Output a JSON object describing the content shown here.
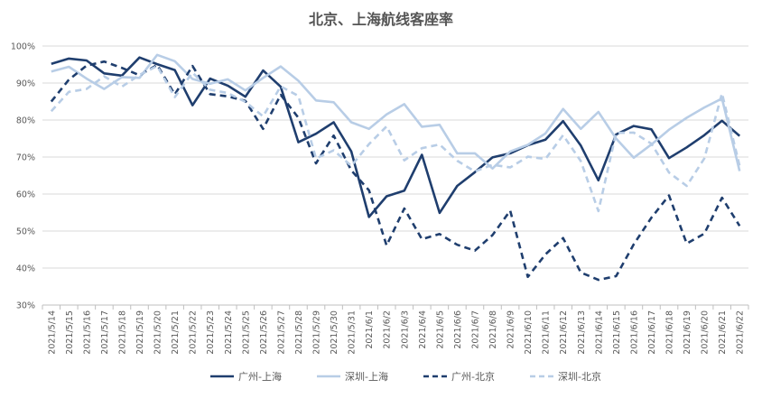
{
  "chart_data": {
    "type": "line",
    "title": "北京、上海航线客座率",
    "xlabel": "",
    "ylabel": "",
    "ylim": [
      30,
      100
    ],
    "yticks": [
      "30%",
      "40%",
      "50%",
      "60%",
      "70%",
      "80%",
      "90%",
      "100%"
    ],
    "grid": "horizontal",
    "legend_position": "bottom",
    "categories": [
      "2021/5/14",
      "2021/5/15",
      "2021/5/16",
      "2021/5/17",
      "2021/5/18",
      "2021/5/19",
      "2021/5/20",
      "2021/5/21",
      "2021/5/22",
      "2021/5/23",
      "2021/5/24",
      "2021/5/25",
      "2021/5/26",
      "2021/5/27",
      "2021/5/28",
      "2021/5/29",
      "2021/5/30",
      "2021/5/31",
      "2021/6/1",
      "2021/6/2",
      "2021/6/3",
      "2021/6/4",
      "2021/6/5",
      "2021/6/6",
      "2021/6/7",
      "2021/6/8",
      "2021/6/9",
      "2021/6/10",
      "2021/6/11",
      "2021/6/12",
      "2021/6/13",
      "2021/6/14",
      "2021/6/15",
      "2021/6/16",
      "2021/6/17",
      "2021/6/18",
      "2021/6/19",
      "2021/6/20",
      "2021/6/21",
      "2021/6/22"
    ],
    "series": [
      {
        "name": "广州-上海",
        "color": "#1f3e6e",
        "style": "solid",
        "values": [
          95.2,
          96.6,
          96.1,
          92.6,
          92.0,
          96.9,
          95.1,
          93.5,
          84.0,
          91.2,
          89.3,
          86.3,
          93.4,
          89.0,
          74.0,
          76.3,
          79.4,
          71.5,
          53.8,
          59.4,
          60.9,
          70.6,
          54.9,
          62.2,
          65.9,
          69.9,
          71.0,
          73.2,
          74.7,
          79.7,
          73.1,
          63.7,
          76.1,
          78.4,
          77.5,
          69.7,
          72.6,
          75.9,
          79.8,
          75.7
        ]
      },
      {
        "name": "深圳-上海",
        "color": "#b8cde6",
        "style": "solid",
        "values": [
          93.1,
          94.4,
          91.2,
          88.4,
          91.6,
          91.4,
          97.6,
          95.9,
          91.1,
          89.8,
          91.0,
          88.0,
          91.4,
          94.5,
          90.6,
          85.3,
          84.8,
          79.4,
          77.6,
          81.5,
          84.3,
          78.2,
          78.7,
          71.0,
          71.0,
          66.9,
          71.5,
          73.3,
          76.4,
          83.0,
          77.6,
          82.2,
          75.0,
          69.8,
          73.4,
          77.4,
          80.6,
          83.4,
          85.8,
          66.2
        ]
      },
      {
        "name": "广州-北京",
        "color": "#1f3e6e",
        "style": "dashed",
        "values": [
          85.0,
          90.9,
          94.7,
          95.8,
          94.1,
          92.1,
          94.9,
          86.9,
          94.6,
          87.0,
          86.4,
          85.2,
          77.6,
          86.8,
          80.6,
          68.3,
          75.8,
          66.4,
          61.0,
          46.1,
          56.1,
          47.8,
          49.2,
          46.3,
          44.7,
          48.9,
          55.5,
          37.6,
          43.7,
          48.1,
          38.8,
          36.8,
          37.8,
          46.4,
          53.6,
          59.6,
          46.6,
          49.3,
          59.0,
          51.4
        ]
      },
      {
        "name": "深圳-北京",
        "color": "#b8cde6",
        "style": "dashed",
        "values": [
          82.4,
          87.6,
          88.4,
          91.8,
          89.0,
          92.2,
          94.6,
          86.2,
          92.8,
          88.2,
          87.3,
          84.9,
          81.0,
          89.1,
          86.5,
          69.6,
          71.8,
          67.6,
          73.5,
          78.3,
          69.1,
          72.4,
          73.4,
          69.0,
          66.1,
          67.9,
          67.2,
          70.1,
          69.5,
          75.9,
          68.9,
          55.4,
          76.5,
          76.6,
          73.6,
          65.8,
          62.2,
          69.6,
          87.2,
          67.6
        ]
      }
    ]
  }
}
